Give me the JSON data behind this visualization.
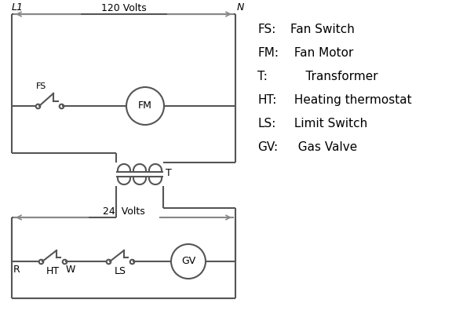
{
  "bg_color": "#ffffff",
  "line_color": "#555555",
  "arrow_color": "#888888",
  "text_color": "#000000",
  "legend_items": [
    [
      "FS:",
      "Fan Switch"
    ],
    [
      "FM:",
      " Fan Motor"
    ],
    [
      "T:",
      "    Transformer"
    ],
    [
      "HT:",
      " Heating thermostat"
    ],
    [
      "LS:",
      " Limit Switch"
    ],
    [
      "GV:",
      "  Gas Valve"
    ]
  ],
  "label_L1": "L1",
  "label_N": "N",
  "label_120V": "120 Volts",
  "label_24V": "24  Volts",
  "label_T": "T",
  "label_FS": "FS",
  "label_FM": "FM",
  "label_GV": "GV",
  "label_R": "R",
  "label_W": "W",
  "label_HT": "HT",
  "label_LS": "LS"
}
